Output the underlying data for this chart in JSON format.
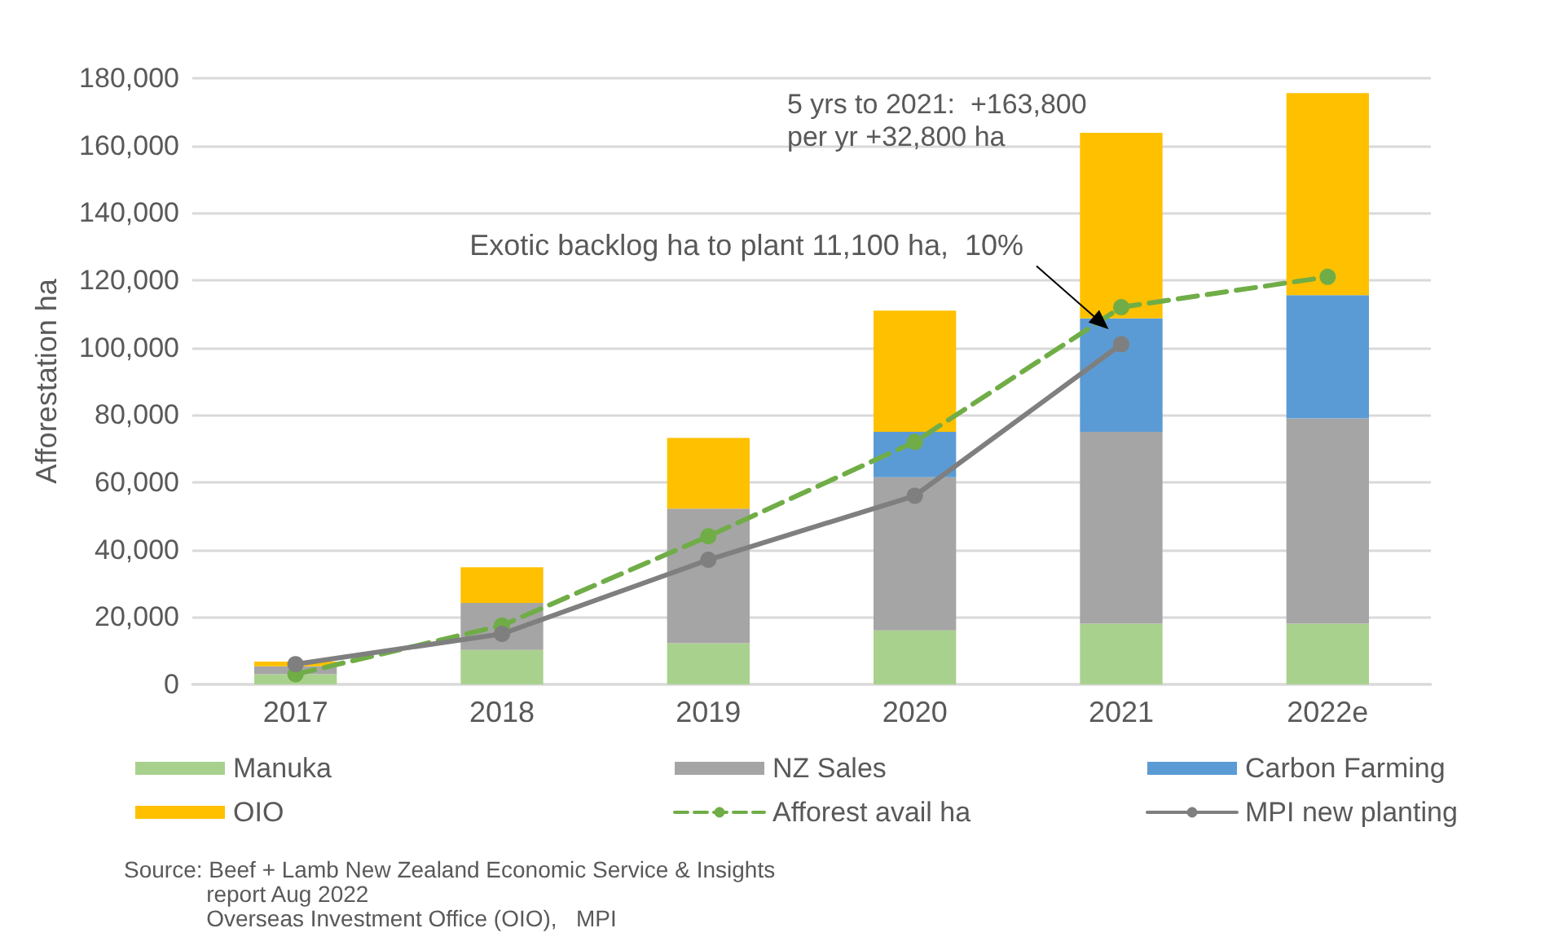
{
  "chart_data": {
    "type": "bar",
    "stacked": true,
    "ylabel": "Afforestation ha",
    "categories": [
      "2017",
      "2018",
      "2019",
      "2020",
      "2021",
      "2022e"
    ],
    "series": [
      {
        "name": "Manuka",
        "color": "#a9d18e",
        "values": [
          3000,
          10200,
          12200,
          16000,
          18000,
          18000
        ]
      },
      {
        "name": "NZ Sales",
        "color": "#a5a5a5",
        "values": [
          2400,
          14000,
          40000,
          45500,
          57000,
          61000
        ]
      },
      {
        "name": "Carbon Farming",
        "color": "#5b9bd5",
        "values": [
          0,
          0,
          0,
          13500,
          33700,
          36600
        ]
      },
      {
        "name": "OIO",
        "color": "#ffc000",
        "values": [
          1400,
          10600,
          21000,
          36000,
          55100,
          60000
        ]
      },
      {
        "name": "Afforest avail ha",
        "type": "line",
        "color": "#70ad47",
        "line_style": "dashed",
        "marker": "circle",
        "values": [
          3000,
          17500,
          44000,
          72000,
          112000,
          121000
        ]
      },
      {
        "name": "MPI new planting",
        "type": "line",
        "color": "#7f7f7f",
        "line_style": "solid",
        "marker": "circle",
        "values": [
          6000,
          15000,
          37000,
          56000,
          101000,
          null
        ]
      }
    ],
    "ylim": [
      0,
      180000
    ],
    "yticks": [
      0,
      {
        "value": 20000,
        "label": "20,000"
      },
      {
        "value": 40000,
        "label": "40,000"
      },
      {
        "value": 60000,
        "label": "60,000"
      },
      {
        "value": 80000,
        "label": "80,000"
      },
      {
        "value": 100000,
        "label": "100,000"
      },
      {
        "value": 120000,
        "label": "120,000"
      },
      {
        "value": 140000,
        "label": "140,000"
      },
      {
        "value": 160000,
        "label": "160,000"
      },
      {
        "value": 180000,
        "label": "180,000"
      }
    ],
    "grid": "y",
    "legend": "bottom",
    "annotations": [
      "5 yrs to 2021:  +163,800\nper yr +32,800 ha",
      "Exotic backlog ha to plant 11,100 ha,  10%",
      "Source: Beef + Lamb New Zealand Economic Service & Insights\n             report Aug 2022\n             Overseas Investment Office (OIO),   MPI"
    ]
  }
}
